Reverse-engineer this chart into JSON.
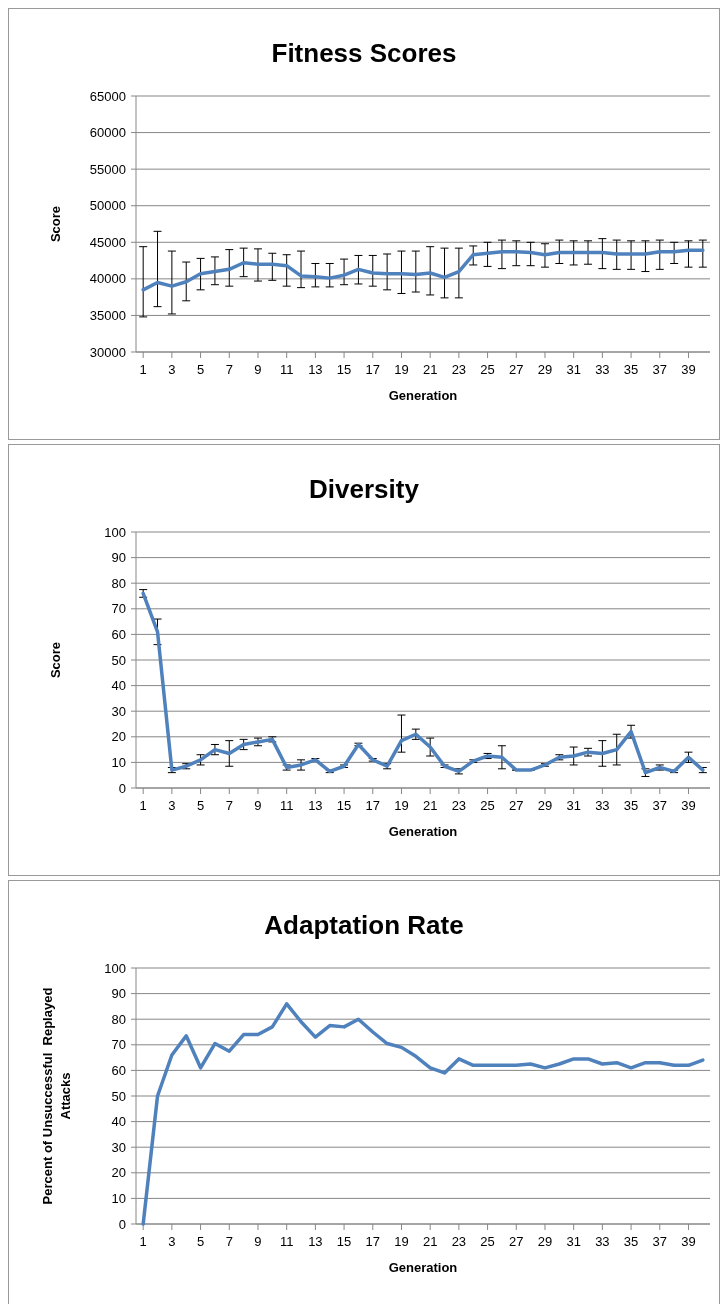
{
  "chart_data": [
    {
      "type": "line",
      "title": "Fitness Scores",
      "xlabel": "Generation",
      "ylabel": "Score",
      "x": [
        1,
        2,
        3,
        4,
        5,
        6,
        7,
        8,
        9,
        10,
        11,
        12,
        13,
        14,
        15,
        16,
        17,
        18,
        19,
        20,
        21,
        22,
        23,
        24,
        25,
        26,
        27,
        28,
        29,
        30,
        31,
        32,
        33,
        34,
        35,
        36,
        37,
        38,
        39,
        40
      ],
      "xlim": [
        0.5,
        40.5
      ],
      "xticks": [
        1,
        3,
        5,
        7,
        9,
        11,
        13,
        15,
        17,
        19,
        21,
        23,
        25,
        27,
        29,
        31,
        33,
        35,
        37,
        39
      ],
      "ylim": [
        30000,
        65000
      ],
      "yticks": [
        30000,
        35000,
        40000,
        45000,
        50000,
        55000,
        60000,
        65000
      ],
      "grid": "y",
      "marker": "none",
      "series": [
        {
          "color": "#4f81bd",
          "values": [
            38500,
            39500,
            39000,
            39600,
            40700,
            41000,
            41300,
            42200,
            42000,
            42000,
            41800,
            40400,
            40300,
            40100,
            40500,
            41300,
            40800,
            40700,
            40700,
            40600,
            40800,
            40200,
            41000,
            43300,
            43500,
            43700,
            43700,
            43600,
            43300,
            43600,
            43600,
            43600,
            43600,
            43400,
            43400,
            43400,
            43700,
            43700,
            43900,
            43900
          ],
          "errors": [
            [
              34800,
              44400
            ],
            [
              36200,
              46500
            ],
            [
              35200,
              43800
            ],
            [
              37000,
              42300
            ],
            [
              38500,
              42800
            ],
            [
              39200,
              43000
            ],
            [
              39000,
              44000
            ],
            [
              40300,
              44200
            ],
            [
              39700,
              44100
            ],
            [
              39800,
              43500
            ],
            [
              39000,
              43300
            ],
            [
              38800,
              43800
            ],
            [
              38900,
              42100
            ],
            [
              38900,
              42100
            ],
            [
              39200,
              42700
            ],
            [
              39300,
              43200
            ],
            [
              39000,
              43200
            ],
            [
              38500,
              43400
            ],
            [
              38000,
              43800
            ],
            [
              38200,
              43800
            ],
            [
              37800,
              44400
            ],
            [
              37400,
              44200
            ],
            [
              37400,
              44200
            ],
            [
              41900,
              44500
            ],
            [
              41700,
              45000
            ],
            [
              41400,
              45300
            ],
            [
              41800,
              45200
            ],
            [
              41800,
              45000
            ],
            [
              41600,
              44800
            ],
            [
              42100,
              45300
            ],
            [
              41900,
              45200
            ],
            [
              42000,
              45200
            ],
            [
              41400,
              45500
            ],
            [
              41300,
              45300
            ],
            [
              41300,
              45200
            ],
            [
              41000,
              45200
            ],
            [
              41300,
              45300
            ],
            [
              42100,
              45000
            ],
            [
              41600,
              45200
            ],
            [
              41600,
              45300
            ]
          ]
        }
      ]
    },
    {
      "type": "line",
      "title": "Diversity",
      "xlabel": "Generation",
      "ylabel": "Score",
      "x": [
        1,
        2,
        3,
        4,
        5,
        6,
        7,
        8,
        9,
        10,
        11,
        12,
        13,
        14,
        15,
        16,
        17,
        18,
        19,
        20,
        21,
        22,
        23,
        24,
        25,
        26,
        27,
        28,
        29,
        30,
        31,
        32,
        33,
        34,
        35,
        36,
        37,
        38,
        39,
        40
      ],
      "xlim": [
        0.5,
        40.5
      ],
      "xticks": [
        1,
        3,
        5,
        7,
        9,
        11,
        13,
        15,
        17,
        19,
        21,
        23,
        25,
        27,
        29,
        31,
        33,
        35,
        37,
        39
      ],
      "ylim": [
        0,
        100
      ],
      "yticks": [
        0,
        10,
        20,
        30,
        40,
        50,
        60,
        70,
        80,
        90,
        100
      ],
      "grid": "y",
      "marker": "none",
      "series": [
        {
          "color": "#4f81bd",
          "values": [
            76,
            61,
            7,
            8.5,
            11,
            15,
            13.5,
            17,
            18,
            19,
            8,
            9,
            11,
            6.5,
            8.5,
            17,
            11,
            8.5,
            18.5,
            21,
            16,
            8.5,
            6.5,
            10.5,
            12.5,
            12,
            7,
            7,
            9,
            12,
            12.5,
            14,
            13.5,
            15,
            22,
            6,
            8,
            6.5,
            12,
            7
          ],
          "errors": [
            1.5,
            5,
            1,
            1,
            2,
            2,
            5,
            2,
            1.5,
            1,
            1,
            2,
            0.5,
            0.5,
            0.5,
            0.5,
            0.5,
            1,
            [
              14,
              28.5
            ],
            2,
            3.5,
            0.5,
            1,
            0.5,
            1,
            4.5,
            0,
            0,
            0.5,
            1,
            3.5,
            1.5,
            5,
            6,
            2.5,
            1.5,
            1,
            0.5,
            2,
            1
          ]
        }
      ]
    },
    {
      "type": "line",
      "title": "Adaptation Rate",
      "xlabel": "Generation",
      "ylabel": "Percent of Unsuccessful  Replayed Attacks",
      "x": [
        1,
        2,
        3,
        4,
        5,
        6,
        7,
        8,
        9,
        10,
        11,
        12,
        13,
        14,
        15,
        16,
        17,
        18,
        19,
        20,
        21,
        22,
        23,
        24,
        25,
        26,
        27,
        28,
        29,
        30,
        31,
        32,
        33,
        34,
        35,
        36,
        37,
        38,
        39,
        40
      ],
      "xlim": [
        0.5,
        40.5
      ],
      "xticks": [
        1,
        3,
        5,
        7,
        9,
        11,
        13,
        15,
        17,
        19,
        21,
        23,
        25,
        27,
        29,
        31,
        33,
        35,
        37,
        39
      ],
      "ylim": [
        0,
        100
      ],
      "yticks": [
        0,
        10,
        20,
        30,
        40,
        50,
        60,
        70,
        80,
        90,
        100
      ],
      "grid": "y",
      "marker": "none",
      "series": [
        {
          "color": "#4f81bd",
          "values": [
            0,
            50,
            66,
            73.5,
            61,
            70.5,
            67.5,
            74,
            74,
            77,
            86,
            79,
            73,
            77.5,
            77,
            80,
            75,
            70.5,
            69,
            65.5,
            61,
            59,
            64.5,
            62,
            62,
            62,
            62,
            62.5,
            61,
            62.5,
            64.5,
            64.5,
            62.5,
            63,
            61,
            63,
            63,
            62,
            62,
            64
          ]
        }
      ]
    }
  ]
}
